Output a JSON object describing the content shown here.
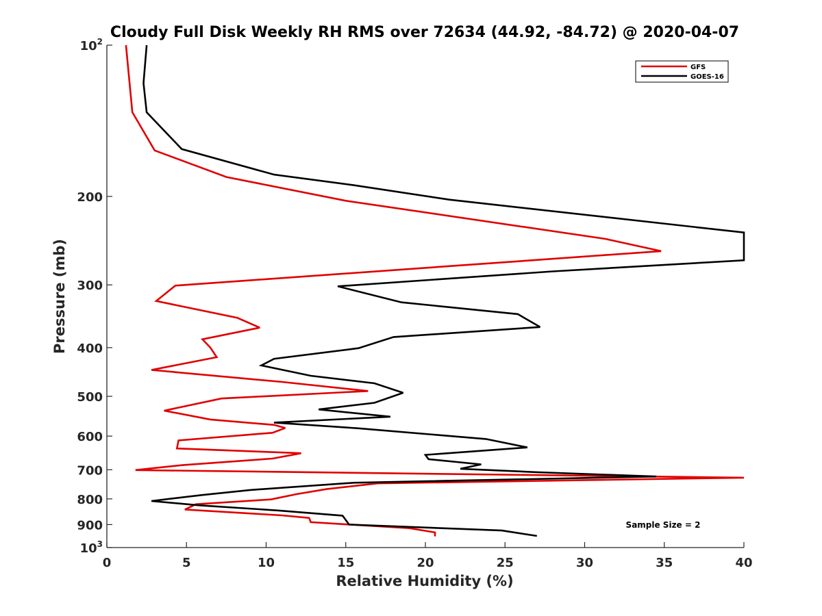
{
  "chart_data": {
    "type": "line",
    "title": "Cloudy Full Disk Weekly RH RMS over 72634 (44.92, -84.72) @ 2020-04-07",
    "xlabel": "Relative Humidity (%)",
    "ylabel": "Pressure (mb)",
    "xlim": [
      0,
      40
    ],
    "ylim": [
      100,
      1000
    ],
    "y_scale": "log",
    "y_reversed": true,
    "grid": false,
    "legend_position": "top-right",
    "x_ticks": [
      {
        "value": 0,
        "label": "0"
      },
      {
        "value": 5,
        "label": "5"
      },
      {
        "value": 10,
        "label": "10"
      },
      {
        "value": 15,
        "label": "15"
      },
      {
        "value": 20,
        "label": "20"
      },
      {
        "value": 25,
        "label": "25"
      },
      {
        "value": 30,
        "label": "30"
      },
      {
        "value": 35,
        "label": "35"
      },
      {
        "value": 40,
        "label": "40"
      }
    ],
    "y_ticks": [
      {
        "value": 100,
        "base": "10",
        "exp": "2"
      },
      {
        "value": 200,
        "base": "200",
        "exp": ""
      },
      {
        "value": 300,
        "base": "300",
        "exp": ""
      },
      {
        "value": 400,
        "base": "400",
        "exp": ""
      },
      {
        "value": 500,
        "base": "500",
        "exp": ""
      },
      {
        "value": 600,
        "base": "600",
        "exp": ""
      },
      {
        "value": 700,
        "base": "700",
        "exp": ""
      },
      {
        "value": 800,
        "base": "800",
        "exp": ""
      },
      {
        "value": 900,
        "base": "900",
        "exp": ""
      },
      {
        "value": 1000,
        "base": "10",
        "exp": "3"
      }
    ],
    "annotation": "Sample Size = 2",
    "series": [
      {
        "name": "GFS",
        "color": "#e00000",
        "points": [
          [
            1.2,
            100
          ],
          [
            1.6,
            136
          ],
          [
            3.0,
            162
          ],
          [
            7.5,
            183
          ],
          [
            15.0,
            204
          ],
          [
            31.3,
            243
          ],
          [
            34.8,
            257
          ],
          [
            4.3,
            301
          ],
          [
            3.1,
            323
          ],
          [
            8.2,
            349
          ],
          [
            9.6,
            365
          ],
          [
            6.0,
            385
          ],
          [
            6.5,
            400
          ],
          [
            6.9,
            418
          ],
          [
            2.8,
            443
          ],
          [
            11.0,
            468
          ],
          [
            16.4,
            488
          ],
          [
            7.2,
            505
          ],
          [
            3.6,
            534
          ],
          [
            6.5,
            556
          ],
          [
            10.5,
            570
          ],
          [
            11.2,
            578
          ],
          [
            10.4,
            591
          ],
          [
            4.5,
            612
          ],
          [
            4.4,
            635
          ],
          [
            12.2,
            649
          ],
          [
            10.4,
            665
          ],
          [
            4.8,
            685
          ],
          [
            1.8,
            701
          ],
          [
            40,
            726
          ],
          [
            17.0,
            745
          ],
          [
            13.8,
            765
          ],
          [
            11.9,
            783
          ],
          [
            10.3,
            802
          ],
          [
            5.6,
            820
          ],
          [
            4.9,
            840
          ],
          [
            11.0,
            863
          ],
          [
            12.7,
            873
          ],
          [
            12.8,
            890
          ],
          [
            19.0,
            915
          ],
          [
            20.6,
            933
          ],
          [
            20.6,
            950
          ]
        ]
      },
      {
        "name": "GOES-16",
        "color": "#000000",
        "points": [
          [
            2.5,
            100
          ],
          [
            2.3,
            119
          ],
          [
            2.5,
            136
          ],
          [
            4.7,
            161
          ],
          [
            10.5,
            181
          ],
          [
            15.5,
            190
          ],
          [
            21.5,
            203
          ],
          [
            40,
            236
          ],
          [
            40,
            268
          ],
          [
            28.0,
            282
          ],
          [
            14.5,
            302
          ],
          [
            18.5,
            325
          ],
          [
            25.8,
            343
          ],
          [
            27.2,
            364
          ],
          [
            18.0,
            381
          ],
          [
            15.8,
            401
          ],
          [
            10.5,
            421
          ],
          [
            9.7,
            434
          ],
          [
            12.8,
            455
          ],
          [
            16.8,
            471
          ],
          [
            18.6,
            492
          ],
          [
            16.8,
            515
          ],
          [
            13.3,
            531
          ],
          [
            17.8,
            549
          ],
          [
            10.5,
            564
          ],
          [
            15.8,
            579
          ],
          [
            23.8,
            608
          ],
          [
            26.4,
            632
          ],
          [
            20.0,
            654
          ],
          [
            20.2,
            667
          ],
          [
            23.5,
            683
          ],
          [
            22.2,
            697
          ],
          [
            27.0,
            708
          ],
          [
            34.5,
            722
          ],
          [
            15.5,
            743
          ],
          [
            9.0,
            768
          ],
          [
            6.0,
            786
          ],
          [
            2.8,
            808
          ],
          [
            5.8,
            824
          ],
          [
            10.8,
            844
          ],
          [
            14.8,
            864
          ],
          [
            15.1,
            890
          ],
          [
            15.2,
            900
          ],
          [
            24.8,
            925
          ],
          [
            27.0,
            948
          ]
        ]
      }
    ]
  }
}
